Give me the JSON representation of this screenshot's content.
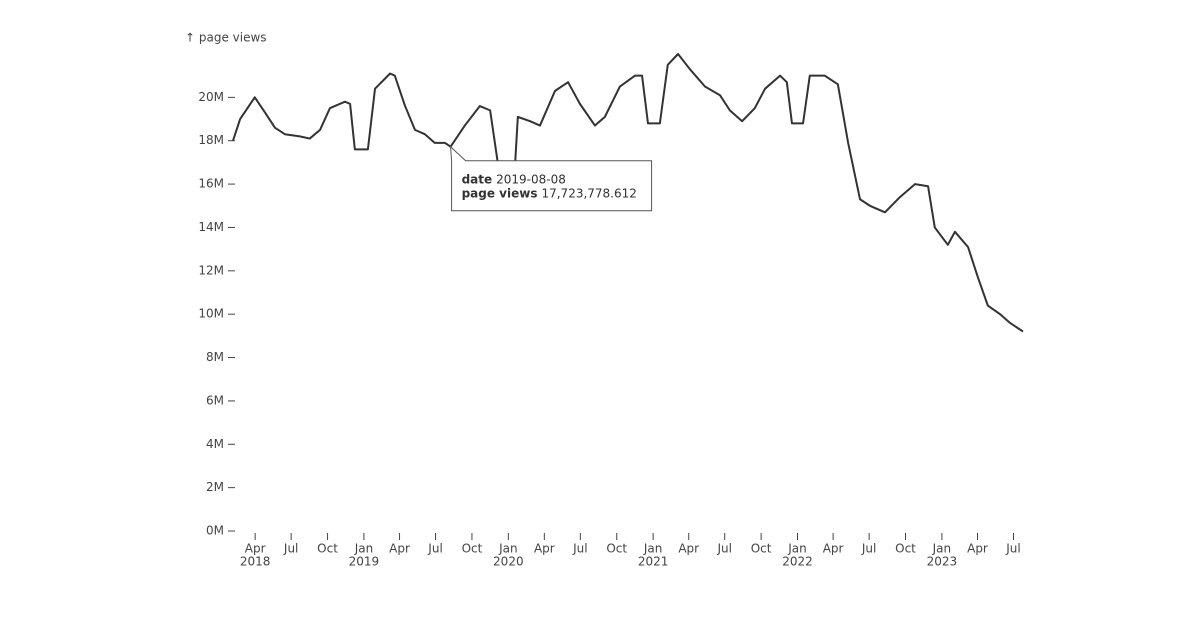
{
  "chart_data": {
    "type": "line",
    "y_label": "↑ page views",
    "color": "#333333",
    "x": [
      "2018-02-04",
      "2018-02-22",
      "2018-03-31",
      "2018-04-26",
      "2018-05-21",
      "2018-06-15",
      "2018-07-23",
      "2018-08-17",
      "2018-09-12",
      "2018-10-07",
      "2018-11-14",
      "2018-11-27",
      "2018-12-09",
      "2019-01-11",
      "2019-01-29",
      "2019-03-08",
      "2019-03-20",
      "2019-04-15",
      "2019-05-10",
      "2019-06-04",
      "2019-06-29",
      "2019-07-25",
      "2019-08-08",
      "2019-09-13",
      "2019-10-21",
      "2019-11-16",
      "2019-12-06",
      "2020-01-18",
      "2020-01-25",
      "2020-02-25",
      "2020-03-21",
      "2020-04-28",
      "2020-05-31",
      "2020-06-30",
      "2020-08-07",
      "2020-09-01",
      "2020-10-09",
      "2020-11-16",
      "2020-12-04",
      "2020-12-19",
      "2021-01-18",
      "2021-02-07",
      "2021-03-05",
      "2021-04-04",
      "2021-05-12",
      "2021-06-19",
      "2021-07-14",
      "2021-08-14",
      "2021-09-15",
      "2021-10-11",
      "2021-11-18",
      "2021-12-05",
      "2021-12-18",
      "2022-01-15",
      "2022-02-01",
      "2022-03-11",
      "2022-04-13",
      "2022-05-09",
      "2022-06-08",
      "2022-07-03",
      "2022-08-10",
      "2022-09-17",
      "2022-10-25",
      "2022-11-27",
      "2022-12-14",
      "2023-01-16",
      "2023-02-03",
      "2023-03-08",
      "2023-04-02",
      "2023-04-27",
      "2023-05-28",
      "2023-06-22",
      "2023-07-25"
    ],
    "values": [
      18000000,
      19000000,
      20000000,
      19300000,
      18600000,
      18300000,
      18200000,
      18100000,
      18500000,
      19500000,
      19800000,
      19700000,
      17600000,
      17600000,
      20400000,
      21100000,
      21000000,
      19600000,
      18500000,
      18300000,
      17900000,
      17900000,
      17723778.612,
      18700000,
      19600000,
      19400000,
      16900000,
      16900000,
      19100000,
      18900000,
      18700000,
      20300000,
      20700000,
      19700000,
      18700000,
      19100000,
      20500000,
      21000000,
      21000000,
      18800000,
      18800000,
      21500000,
      22000000,
      21300000,
      20500000,
      20100000,
      19400000,
      18900000,
      19500000,
      20400000,
      21000000,
      20700000,
      18800000,
      18800000,
      21000000,
      21000000,
      20600000,
      17900000,
      15300000,
      15000000,
      14700000,
      15400000,
      16000000,
      15900000,
      14000000,
      13200000,
      13800000,
      13100000,
      11700000,
      10400000,
      10000000,
      9600000,
      9200000
    ],
    "xlim": [
      "2018-02-04",
      "2023-07-25"
    ],
    "ylim": [
      0,
      22000000
    ],
    "yticks": [
      {
        "value": 0,
        "label": "0M"
      },
      {
        "value": 2000000,
        "label": "2M"
      },
      {
        "value": 4000000,
        "label": "4M"
      },
      {
        "value": 6000000,
        "label": "6M"
      },
      {
        "value": 8000000,
        "label": "8M"
      },
      {
        "value": 10000000,
        "label": "10M"
      },
      {
        "value": 12000000,
        "label": "12M"
      },
      {
        "value": 14000000,
        "label": "14M"
      },
      {
        "value": 16000000,
        "label": "16M"
      },
      {
        "value": 18000000,
        "label": "18M"
      },
      {
        "value": 20000000,
        "label": "20M"
      }
    ],
    "xticks": [
      {
        "value": "2018-04-01",
        "label": "Apr",
        "year": "2018"
      },
      {
        "value": "2018-07-01",
        "label": "Jul"
      },
      {
        "value": "2018-10-01",
        "label": "Oct"
      },
      {
        "value": "2019-01-01",
        "label": "Jan",
        "year": "2019"
      },
      {
        "value": "2019-04-01",
        "label": "Apr"
      },
      {
        "value": "2019-07-01",
        "label": "Jul"
      },
      {
        "value": "2019-10-01",
        "label": "Oct"
      },
      {
        "value": "2020-01-01",
        "label": "Jan",
        "year": "2020"
      },
      {
        "value": "2020-04-01",
        "label": "Apr"
      },
      {
        "value": "2020-07-01",
        "label": "Jul"
      },
      {
        "value": "2020-10-01",
        "label": "Oct"
      },
      {
        "value": "2021-01-01",
        "label": "Jan",
        "year": "2021"
      },
      {
        "value": "2021-04-01",
        "label": "Apr"
      },
      {
        "value": "2021-07-01",
        "label": "Jul"
      },
      {
        "value": "2021-10-01",
        "label": "Oct"
      },
      {
        "value": "2022-01-01",
        "label": "Jan",
        "year": "2022"
      },
      {
        "value": "2022-04-01",
        "label": "Apr"
      },
      {
        "value": "2022-07-01",
        "label": "Jul"
      },
      {
        "value": "2022-10-01",
        "label": "Oct"
      },
      {
        "value": "2023-01-01",
        "label": "Jan",
        "year": "2023"
      },
      {
        "value": "2023-04-01",
        "label": "Apr"
      },
      {
        "value": "2023-07-01",
        "label": "Jul"
      }
    ],
    "tooltip": {
      "date_name": "date",
      "date": "2019-08-08",
      "value_name": "page views",
      "value": 17723778.612,
      "value_label": "17,723,778.612"
    }
  }
}
